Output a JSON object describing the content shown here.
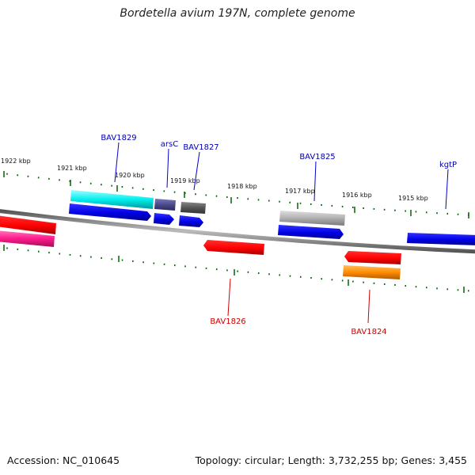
{
  "title": "Bordetella avium 197N, complete genome",
  "footer": {
    "accession": "Accession: NC_010645",
    "summary": "Topology: circular; Length: 3,732,255 bp; Genes: 3,455"
  },
  "scale_labels": [
    "1922 kbp",
    "1921 kbp",
    "1920 kbp",
    "1919 kbp",
    "1918 kbp",
    "1917 kbp",
    "1916 kbp",
    "1915 kbp"
  ],
  "genes": [
    {
      "name": "BAV1829",
      "strand": "plus",
      "color": "#0000b0"
    },
    {
      "name": "arsC",
      "strand": "plus",
      "color": "#0000b0"
    },
    {
      "name": "BAV1827",
      "strand": "plus",
      "color": "#0000b0"
    },
    {
      "name": "BAV1825",
      "strand": "plus",
      "color": "#0000b0"
    },
    {
      "name": "kgtP",
      "strand": "plus",
      "color": "#0000b0"
    },
    {
      "name": "BAV1826",
      "strand": "minus",
      "color": "#cc0000"
    },
    {
      "name": "BAV1824",
      "strand": "minus",
      "color": "#cc0000"
    }
  ],
  "colors": {
    "backbone": "#808080",
    "ticks": "#006400",
    "plus_gene": "#0000e6",
    "minus_gene": "#ff0000",
    "cyan_feature": "#00e5e5",
    "grey_feature": "#b0b0b0",
    "purple_feature": "#4b4b8c",
    "dark_feature": "#555555",
    "pink_feature": "#ff1a8c",
    "orange_feature": "#ff8c00"
  }
}
